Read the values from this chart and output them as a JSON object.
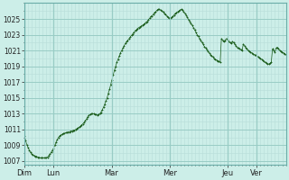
{
  "background_color": "#cceee8",
  "plot_bg_color": "#cceee8",
  "line_color": "#1a5c1a",
  "marker_color": "#1a5c1a",
  "grid_color_minor": "#b8ddd8",
  "grid_color_major": "#99ccc5",
  "ylim": [
    1006.5,
    1027.0
  ],
  "yticks": [
    1007,
    1009,
    1011,
    1013,
    1015,
    1017,
    1019,
    1021,
    1023,
    1025
  ],
  "xlabel_days": [
    "Dim",
    "Lun",
    "Mar",
    "Mer",
    "Jeu",
    "Ver"
  ],
  "day_positions": [
    0,
    24,
    72,
    120,
    168,
    192
  ],
  "total_hours": 216,
  "pressure_data": [
    1010.2,
    1009.6,
    1009.1,
    1008.7,
    1008.4,
    1008.1,
    1007.9,
    1007.8,
    1007.7,
    1007.6,
    1007.6,
    1007.5,
    1007.5,
    1007.4,
    1007.4,
    1007.4,
    1007.4,
    1007.4,
    1007.4,
    1007.5,
    1007.7,
    1007.9,
    1008.1,
    1008.4,
    1008.6,
    1009.0,
    1009.4,
    1009.7,
    1010.0,
    1010.2,
    1010.3,
    1010.4,
    1010.5,
    1010.5,
    1010.6,
    1010.6,
    1010.7,
    1010.7,
    1010.8,
    1010.8,
    1010.9,
    1010.9,
    1011.0,
    1011.1,
    1011.2,
    1011.3,
    1011.4,
    1011.6,
    1011.7,
    1011.9,
    1012.1,
    1012.3,
    1012.6,
    1012.8,
    1012.9,
    1013.0,
    1013.0,
    1013.0,
    1012.9,
    1012.9,
    1012.8,
    1012.9,
    1013.0,
    1013.2,
    1013.5,
    1013.8,
    1014.2,
    1014.6,
    1015.0,
    1015.6,
    1016.1,
    1016.7,
    1017.3,
    1017.9,
    1018.5,
    1019.0,
    1019.5,
    1019.9,
    1020.3,
    1020.7,
    1021.0,
    1021.3,
    1021.6,
    1021.9,
    1022.1,
    1022.3,
    1022.5,
    1022.7,
    1022.9,
    1023.1,
    1023.3,
    1023.5,
    1023.6,
    1023.8,
    1023.9,
    1024.0,
    1024.1,
    1024.2,
    1024.3,
    1024.4,
    1024.6,
    1024.7,
    1024.9,
    1025.1,
    1025.3,
    1025.4,
    1025.6,
    1025.8,
    1025.9,
    1026.1,
    1026.2,
    1026.2,
    1026.1,
    1026.0,
    1025.9,
    1025.7,
    1025.6,
    1025.4,
    1025.2,
    1025.1,
    1025.1,
    1025.2,
    1025.3,
    1025.5,
    1025.7,
    1025.8,
    1025.9,
    1026.0,
    1026.1,
    1026.2,
    1026.1,
    1025.9,
    1025.7,
    1025.5,
    1025.2,
    1024.9,
    1024.7,
    1024.4,
    1024.2,
    1023.9,
    1023.6,
    1023.3,
    1023.0,
    1022.8,
    1022.5,
    1022.3,
    1022.0,
    1021.8,
    1021.5,
    1021.3,
    1021.1,
    1020.9,
    1020.7,
    1020.5,
    1020.3,
    1020.2,
    1020.0,
    1019.9,
    1019.8,
    1019.7,
    1019.6,
    1019.5,
    1022.5,
    1022.3,
    1022.1,
    1022.3,
    1022.5,
    1022.4,
    1022.2,
    1022.0,
    1021.9,
    1022.1,
    1022.0,
    1021.8,
    1021.6,
    1021.4,
    1021.3,
    1021.2,
    1021.1,
    1021.0,
    1021.8,
    1021.6,
    1021.4,
    1021.2,
    1021.0,
    1020.9,
    1020.8,
    1020.7,
    1020.6,
    1020.5,
    1020.4,
    1020.3,
    1020.2,
    1020.1,
    1020.0,
    1019.9,
    1019.8,
    1019.6,
    1019.5,
    1019.4,
    1019.3,
    1019.3,
    1019.4,
    1019.5,
    1021.2,
    1021.0,
    1020.8,
    1021.3,
    1021.4,
    1021.2,
    1021.0,
    1020.9,
    1020.8,
    1020.7,
    1020.6,
    1020.5
  ]
}
